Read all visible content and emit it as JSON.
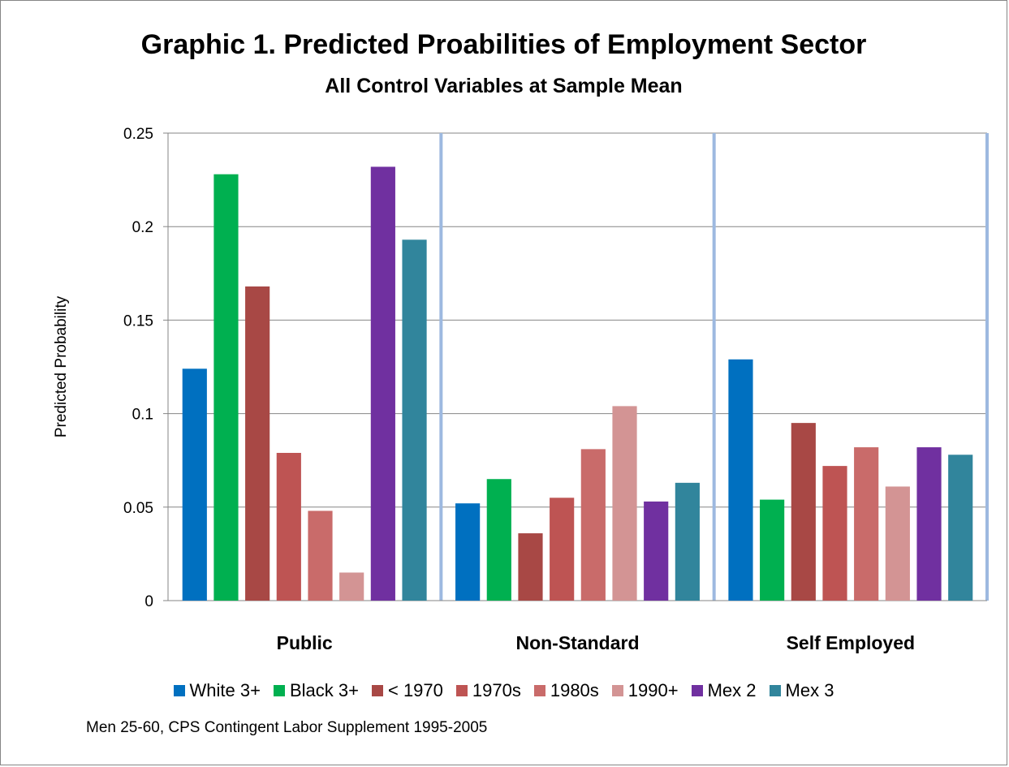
{
  "chart_data": {
    "type": "bar",
    "title": "Graphic 1. Predicted Proabilities of Employment Sector",
    "subtitle": "All Control Variables at Sample Mean",
    "ylabel": "Predicted Probability",
    "xlabel": "",
    "ylim": [
      0,
      0.25
    ],
    "yticks": [
      "0",
      "0.05",
      "0.1",
      "0.15",
      "0.2",
      "0.25"
    ],
    "ytick_values": [
      0,
      0.05,
      0.1,
      0.15,
      0.2,
      0.25
    ],
    "grid": true,
    "legend_position": "bottom",
    "categories": [
      "Public",
      "Non-Standard",
      "Self Employed"
    ],
    "series": [
      {
        "name": "White 3+",
        "color": "#0070C0",
        "values": [
          0.124,
          0.052,
          0.129
        ]
      },
      {
        "name": "Black 3+",
        "color": "#00B050",
        "values": [
          0.228,
          0.065,
          0.054
        ]
      },
      {
        "name": "< 1970",
        "color": "#A84845",
        "values": [
          0.168,
          0.036,
          0.095
        ]
      },
      {
        "name": "1970s",
        "color": "#BE5453",
        "values": [
          0.079,
          0.055,
          0.072
        ]
      },
      {
        "name": "1980s",
        "color": "#C96B6A",
        "values": [
          0.048,
          0.081,
          0.082
        ]
      },
      {
        "name": "1990+",
        "color": "#D39494",
        "values": [
          0.015,
          0.104,
          0.061
        ]
      },
      {
        "name": "Mex 2",
        "color": "#7030A0",
        "values": [
          0.232,
          0.053,
          0.082
        ]
      },
      {
        "name": "Mex 3",
        "color": "#31859C",
        "values": [
          0.193,
          0.063,
          0.078
        ]
      }
    ]
  },
  "note": "Men 25-60, CPS Contingent Labor Supplement 1995-2005"
}
